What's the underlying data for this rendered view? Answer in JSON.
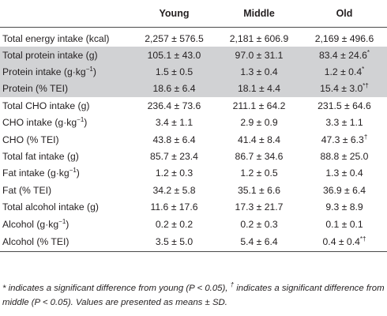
{
  "table": {
    "headers": [
      "",
      "Young",
      "Middle",
      "Old"
    ],
    "rows": [
      {
        "label": "Total energy intake (kcal)",
        "young": "2,257 ± 576.5",
        "middle": "2,181 ± 606.9",
        "old": "2,169 ± 496.6",
        "old_mark": "",
        "shaded": false
      },
      {
        "label": "Total protein intake (g)",
        "young": "105.1 ± 43.0",
        "middle": "97.0 ± 31.1",
        "old": "83.4 ± 24.6",
        "old_mark": "*",
        "shaded": true
      },
      {
        "label": "Protein intake (g·kg",
        "label_sup": "−1",
        "label_tail": ")",
        "young": "1.5 ± 0.5",
        "middle": "1.3 ± 0.4",
        "old": "1.2 ± 0.4",
        "old_mark": "*",
        "shaded": true
      },
      {
        "label": "Protein (% TEI)",
        "young": "18.6 ± 6.4",
        "middle": "18.1 ± 4.4",
        "old": "15.4 ± 3.0",
        "old_mark": "*†",
        "shaded": true
      },
      {
        "label": "Total CHO intake (g)",
        "young": "236.4 ± 73.6",
        "middle": "211.1 ± 64.2",
        "old": "231.5 ± 64.6",
        "old_mark": "",
        "shaded": false
      },
      {
        "label": "CHO intake (g·kg",
        "label_sup": "−1",
        "label_tail": ")",
        "young": "3.4 ± 1.1",
        "middle": "2.9 ± 0.9",
        "old": "3.3 ± 1.1",
        "old_mark": "",
        "shaded": false
      },
      {
        "label": "CHO (% TEI)",
        "young": "43.8 ± 6.4",
        "middle": "41.4 ± 8.4",
        "old": "47.3 ± 6.3",
        "old_mark": "†",
        "shaded": false
      },
      {
        "label": "Total fat intake (g)",
        "young": "85.7 ± 23.4",
        "middle": "86.7 ± 34.6",
        "old": "88.8 ± 25.0",
        "old_mark": "",
        "shaded": false
      },
      {
        "label": "Fat intake (g·kg",
        "label_sup": "−1",
        "label_tail": ")",
        "young": "1.2 ± 0.3",
        "middle": "1.2 ± 0.5",
        "old": "1.3 ± 0.4",
        "old_mark": "",
        "shaded": false
      },
      {
        "label": "Fat (% TEI)",
        "young": "34.2 ± 5.8",
        "middle": "35.1 ± 6.6",
        "old": "36.9 ± 6.4",
        "old_mark": "",
        "shaded": false
      },
      {
        "label": "Total alcohol intake (g)",
        "young": "11.6 ± 17.6",
        "middle": "17.3 ± 21.7",
        "old": "9.3 ± 8.9",
        "old_mark": "",
        "shaded": false
      },
      {
        "label": "Alcohol (g·kg",
        "label_sup": "−1",
        "label_tail": ")",
        "young": "0.2 ± 0.2",
        "middle": "0.2 ± 0.3",
        "old": "0.1 ± 0.1",
        "old_mark": "",
        "shaded": false
      },
      {
        "label": "Alcohol (% TEI)",
        "young": "3.5 ± 5.0",
        "middle": "5.4 ± 6.4",
        "old": "0.4 ± 0.4",
        "old_mark": "*†",
        "shaded": false
      }
    ]
  },
  "footnote": {
    "part1": "* indicates a significant difference from young (P < 0.05), ",
    "dagger": "†",
    "part2": " indicates a significant difference from middle (P < 0.05). Values are presented as means ± SD."
  },
  "colors": {
    "shade": "#d1d2d4",
    "text": "#231f20",
    "rule": "#4a4a4a"
  }
}
